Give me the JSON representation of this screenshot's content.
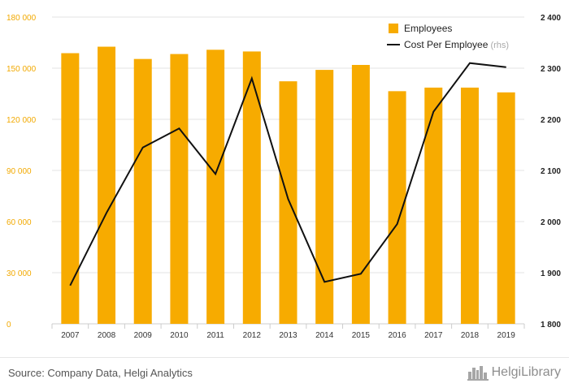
{
  "chart_data": {
    "type": "bar",
    "categories": [
      "2007",
      "2008",
      "2009",
      "2010",
      "2011",
      "2012",
      "2013",
      "2014",
      "2015",
      "2016",
      "2017",
      "2018",
      "2019"
    ],
    "series": [
      {
        "name": "Employees",
        "type": "bar",
        "axis": "left",
        "values": [
          158800,
          162600,
          155400,
          158300,
          160800,
          159800,
          142300,
          149000,
          151900,
          136500,
          138600,
          138600,
          135800
        ]
      },
      {
        "name": "Cost Per Employee",
        "type": "line",
        "axis": "right",
        "values": [
          1875,
          2017,
          2145,
          2182,
          2093,
          2280,
          2044,
          1882,
          1898,
          1995,
          2215,
          2310,
          2302
        ]
      }
    ],
    "y_left": {
      "min": 0,
      "max": 180000,
      "ticks": [
        0,
        30000,
        60000,
        90000,
        120000,
        150000,
        180000
      ],
      "tick_labels": [
        "0",
        "30 000",
        "60 000",
        "90 000",
        "120 000",
        "150 000",
        "180 000"
      ]
    },
    "y_right": {
      "min": 1800,
      "max": 2400,
      "ticks": [
        1800,
        1900,
        2000,
        2100,
        2200,
        2300,
        2400
      ],
      "tick_labels": [
        "1 800",
        "1 900",
        "2 000",
        "2 100",
        "2 200",
        "2 300",
        "2 400"
      ]
    },
    "title": "",
    "xlabel": "",
    "ylabel": "",
    "grid": true,
    "legend": {
      "position": "top-right",
      "items": [
        {
          "label": "Employees",
          "symbol": "square",
          "suffix": ""
        },
        {
          "label": "Cost Per Employee",
          "symbol": "line",
          "suffix": "(rhs)"
        }
      ]
    },
    "colors": {
      "bar": "#f7ab00",
      "line": "#111111",
      "grid": "#e3e3e3",
      "left_axis_text": "#f2a900",
      "right_axis_text": "#222222"
    }
  },
  "footer": {
    "source": "Source: Company Data, Helgi Analytics",
    "brand": "HelgiLibrary",
    "brand_icon": "city-skyline-icon"
  }
}
